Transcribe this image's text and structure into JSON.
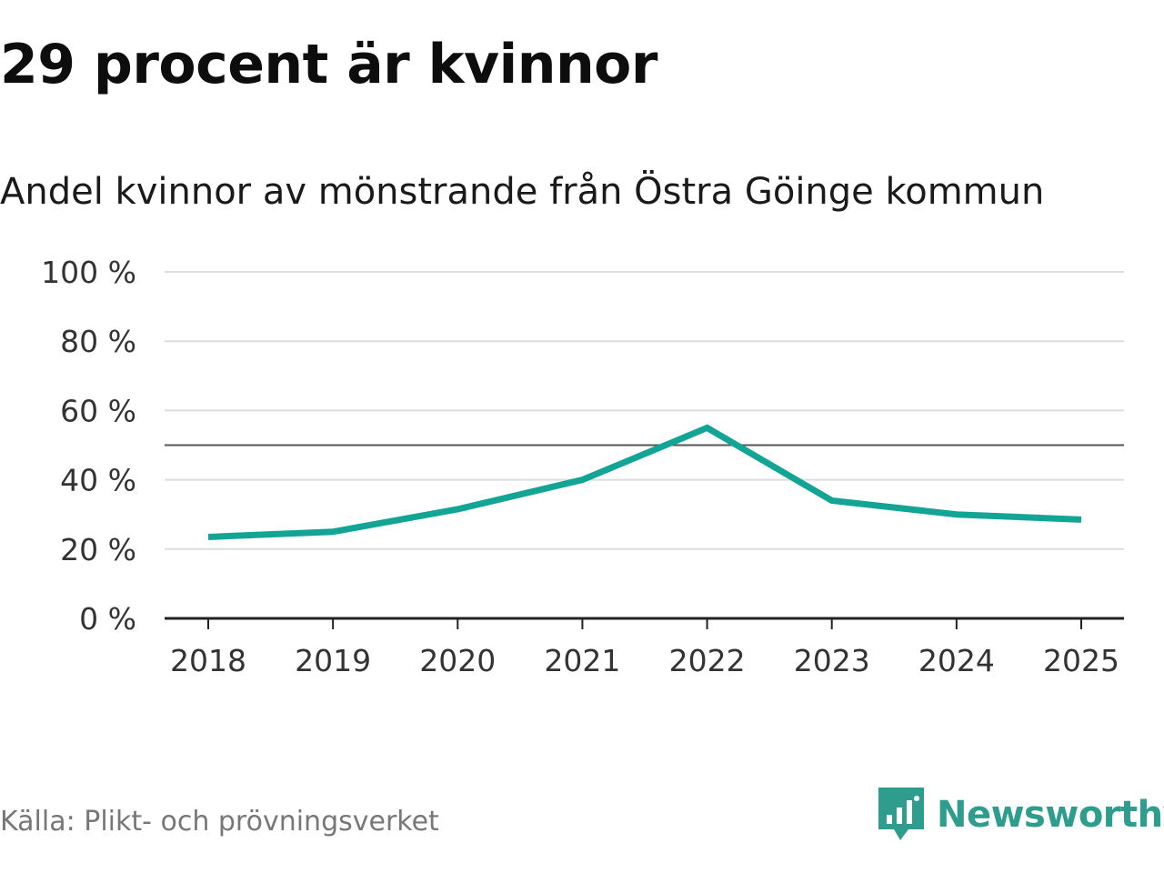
{
  "title": "29 procent är kvinnor",
  "subtitle": "Andel kvinnor av mönstrande från Östra Göinge kommun",
  "source": "Källa: Plikt- och prövningsverket",
  "brand": {
    "name": "Newsworthy",
    "icon": "newsworthy-logo-icon",
    "color": "#2e9d8d"
  },
  "chart_data": {
    "type": "line",
    "x": [
      "2018",
      "2019",
      "2020",
      "2021",
      "2022",
      "2023",
      "2024",
      "2025"
    ],
    "series": [
      {
        "values": [
          23.5,
          25,
          31.5,
          40,
          55,
          34,
          30,
          28.5
        ],
        "color": "#12a596"
      }
    ],
    "ylim": [
      0,
      100
    ],
    "yticks": [
      0,
      20,
      40,
      60,
      80,
      100
    ],
    "ytick_labels": [
      "0 %",
      "20 %",
      "40 %",
      "60 %",
      "80 %",
      "100 %"
    ],
    "reference_line": 50,
    "grid": true
  }
}
